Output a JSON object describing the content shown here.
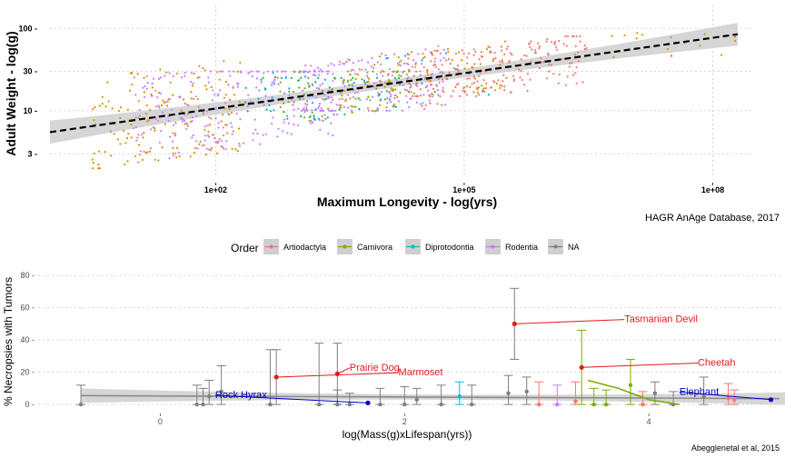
{
  "colors": {
    "Artiodactyla": "#F8766D",
    "Carnivora": "#7CAE00",
    "Diprotodontia": "#00BFC4",
    "Rodentia": "#C77CFF",
    "NA": "#7F7F7F",
    "highlight_red": "#E31A1C",
    "highlight_blue": "#0000CC",
    "extra_orange": "#D39200",
    "extra_blue": "#00A9FF",
    "extra_green": "#00BA38",
    "grid": "#c8c8c8",
    "ribbon": "#cfcfcf"
  },
  "chart_data": [
    {
      "type": "scatter",
      "xlabel": "Maximum Longevity - log(yrs)",
      "ylabel": "Adult Weight - log(g)",
      "log_x": true,
      "log_y": true,
      "xlim": [
        1.0,
        300000000.0
      ],
      "ylim": [
        1.6,
        190
      ],
      "x_ticks": [
        {
          "value": 100,
          "label": "1e+02"
        },
        {
          "value": 100000,
          "label": "1e+05"
        },
        {
          "value": 100000000,
          "label": "1e+08"
        }
      ],
      "y_ticks": [
        {
          "value": 3,
          "label": "3 -"
        },
        {
          "value": 10,
          "label": "10 -"
        },
        {
          "value": 30,
          "label": "30 -"
        },
        {
          "value": 100,
          "label": "100 -"
        }
      ],
      "grid": true,
      "fit_line": {
        "style": "dashed",
        "x": [
          1.0,
          200000000.0
        ],
        "y": [
          5.5,
          85
        ]
      },
      "clusters": [
        {
          "order": "Carnivora",
          "color_key": "extra_orange",
          "x_range": [
            3,
            200
          ],
          "y_range": [
            2,
            40
          ],
          "n": 160,
          "seed": 11
        },
        {
          "order": "Rodentia",
          "x_range": [
            10,
            3000
          ],
          "y_range": [
            2,
            30
          ],
          "n": 260,
          "seed": 7
        },
        {
          "order": "Rodentia",
          "x_range": [
            1000,
            60000
          ],
          "y_range": [
            10,
            70
          ],
          "n": 200,
          "seed": 31
        },
        {
          "order": "Carnivora",
          "x_range": [
            500,
            30000
          ],
          "y_range": [
            6,
            30
          ],
          "n": 70,
          "seed": 19
        },
        {
          "order": "Diprotodontia",
          "color_key": "extra_blue",
          "x_range": [
            300,
            200000
          ],
          "y_range": [
            8,
            50
          ],
          "n": 40,
          "seed": 23
        },
        {
          "order": "Carnivora",
          "color_key": "extra_green",
          "x_range": [
            200,
            20000
          ],
          "y_range": [
            5,
            25
          ],
          "n": 40,
          "seed": 29
        },
        {
          "order": "Artiodactyla",
          "x_range": [
            20000,
            3000000
          ],
          "y_range": [
            15,
            80
          ],
          "n": 210,
          "seed": 3
        },
        {
          "order": "Artiodactyla",
          "color_key": "extra_orange",
          "x_range": [
            3000,
            300000
          ],
          "y_range": [
            10,
            60
          ],
          "n": 90,
          "seed": 41
        },
        {
          "order": "Artiodactyla",
          "color_key": "extra_orange",
          "x_range": [
            5000000,
            200000000
          ],
          "y_range": [
            45,
            175
          ],
          "n": 16,
          "seed": 5
        }
      ],
      "caption": "HAGR AnAge Database, 2017"
    },
    {
      "type": "scatter",
      "xlabel": "log(Mass(g)xLifespan(yrs))",
      "ylabel": "% Necropsies with Tumors",
      "xlim": [
        -1.0,
        5.1
      ],
      "ylim": [
        -5,
        84
      ],
      "x_ticks": [
        0,
        2,
        4
      ],
      "y_ticks": [
        0,
        20,
        40,
        60,
        80
      ],
      "y_tick_labels": [
        "0 -",
        "20 -",
        "40 -",
        "60 -",
        "80 -"
      ],
      "grid": true,
      "legend": {
        "title": "Order",
        "position": "top",
        "entries": [
          "Artiodactyla",
          "Carnivora",
          "Diprotodontia",
          "Rodentia",
          "NA"
        ]
      },
      "fit_line": {
        "x": [
          -0.65,
          5.5
        ],
        "y": [
          5.5,
          3.5
        ]
      },
      "points": [
        {
          "x": -0.65,
          "y": 0,
          "lo": 0,
          "hi": 12,
          "order": "NA"
        },
        {
          "x": 0.3,
          "y": 0,
          "lo": 0,
          "hi": 12,
          "order": "NA"
        },
        {
          "x": 0.35,
          "y": 0,
          "lo": 0,
          "hi": 10,
          "order": "NA"
        },
        {
          "x": 0.4,
          "y": 5,
          "lo": 0,
          "hi": 15,
          "order": "NA"
        },
        {
          "x": 0.5,
          "y": 8,
          "lo": 0,
          "hi": 24,
          "order": "NA"
        },
        {
          "x": 0.9,
          "y": 0,
          "lo": 0,
          "hi": 34,
          "order": "NA"
        },
        {
          "x": 1.3,
          "y": 0,
          "lo": 0,
          "hi": 38,
          "order": "NA"
        },
        {
          "x": 1.45,
          "y": 0,
          "lo": 0,
          "hi": 9,
          "order": "NA"
        },
        {
          "x": 1.55,
          "y": 0,
          "lo": 0,
          "hi": 7,
          "order": "NA"
        },
        {
          "x": 1.8,
          "y": 0,
          "lo": 0,
          "hi": 10,
          "order": "NA"
        },
        {
          "x": 2.0,
          "y": 0,
          "lo": 0,
          "hi": 11,
          "order": "NA"
        },
        {
          "x": 2.1,
          "y": 3,
          "lo": 0,
          "hi": 10,
          "order": "NA"
        },
        {
          "x": 2.3,
          "y": 0,
          "lo": 0,
          "hi": 12,
          "order": "NA"
        },
        {
          "x": 2.45,
          "y": 5,
          "lo": 0,
          "hi": 14,
          "order": "Diprotodontia"
        },
        {
          "x": 2.55,
          "y": 0,
          "lo": 0,
          "hi": 12,
          "order": "NA"
        },
        {
          "x": 2.85,
          "y": 7,
          "lo": 0,
          "hi": 18,
          "order": "NA"
        },
        {
          "x": 3.0,
          "y": 8,
          "lo": 0,
          "hi": 17,
          "order": "NA"
        },
        {
          "x": 3.1,
          "y": 0,
          "lo": 0,
          "hi": 14,
          "order": "Artiodactyla"
        },
        {
          "x": 3.25,
          "y": 0,
          "lo": 0,
          "hi": 12,
          "order": "Rodentia"
        },
        {
          "x": 3.4,
          "y": 2,
          "lo": 0,
          "hi": 14,
          "order": "Artiodactyla"
        },
        {
          "x": 3.55,
          "y": 0,
          "lo": 0,
          "hi": 10,
          "order": "Carnivora"
        },
        {
          "x": 3.65,
          "y": 0,
          "lo": 0,
          "hi": 9,
          "order": "Carnivora"
        },
        {
          "x": 3.85,
          "y": 12,
          "lo": 0,
          "hi": 28,
          "order": "Carnivora"
        },
        {
          "x": 3.95,
          "y": 0,
          "lo": 0,
          "hi": 8,
          "order": "Artiodactyla"
        },
        {
          "x": 4.05,
          "y": 7,
          "lo": 0,
          "hi": 14,
          "order": "NA"
        },
        {
          "x": 4.2,
          "y": 0,
          "lo": 0,
          "hi": 8,
          "order": "NA"
        },
        {
          "x": 4.45,
          "y": 5,
          "lo": 0,
          "hi": 17,
          "order": "NA"
        },
        {
          "x": 4.65,
          "y": 4,
          "lo": 0,
          "hi": 13,
          "order": "Artiodactyla"
        },
        {
          "x": 4.7,
          "y": 3,
          "lo": 0,
          "hi": 9,
          "order": "Artiodactyla"
        }
      ],
      "carnivora_line": {
        "x": [
          3.5,
          3.75,
          4.0,
          4.25
        ],
        "y": [
          15,
          10,
          3,
          0
        ]
      },
      "highlighted": [
        {
          "name": "Tasmanian Devil",
          "x": 2.9,
          "y": 50,
          "lo": 28,
          "hi": 72,
          "color_key": "highlight_red",
          "label_x": 3.8,
          "label_y": 51
        },
        {
          "name": "Cheetah",
          "x": 3.45,
          "y": 23,
          "lo": 0,
          "hi": 46,
          "color_key": "highlight_red",
          "label_x": 4.4,
          "label_y": 24
        },
        {
          "name": "Prairie Dog",
          "x": 1.45,
          "y": 19,
          "lo": 0,
          "hi": 38,
          "color_key": "highlight_red",
          "label_x": 1.55,
          "label_y": 21
        },
        {
          "name": "Marmoset",
          "x": 0.95,
          "y": 17,
          "lo": 0,
          "hi": 34,
          "color_key": "highlight_red",
          "label_x": 1.95,
          "label_y": 18
        },
        {
          "name": "Rock Hyrax",
          "x": 1.7,
          "y": 1,
          "lo": 0,
          "hi": 0,
          "color_key": "highlight_blue",
          "label_x": 0.45,
          "label_y": 4
        },
        {
          "name": "Elephant",
          "x": 5.0,
          "y": 3,
          "lo": 0,
          "hi": 0,
          "color_key": "highlight_blue",
          "label_x": 4.25,
          "label_y": 6
        }
      ],
      "caption": "Abegglenetal et al, 2015"
    }
  ]
}
